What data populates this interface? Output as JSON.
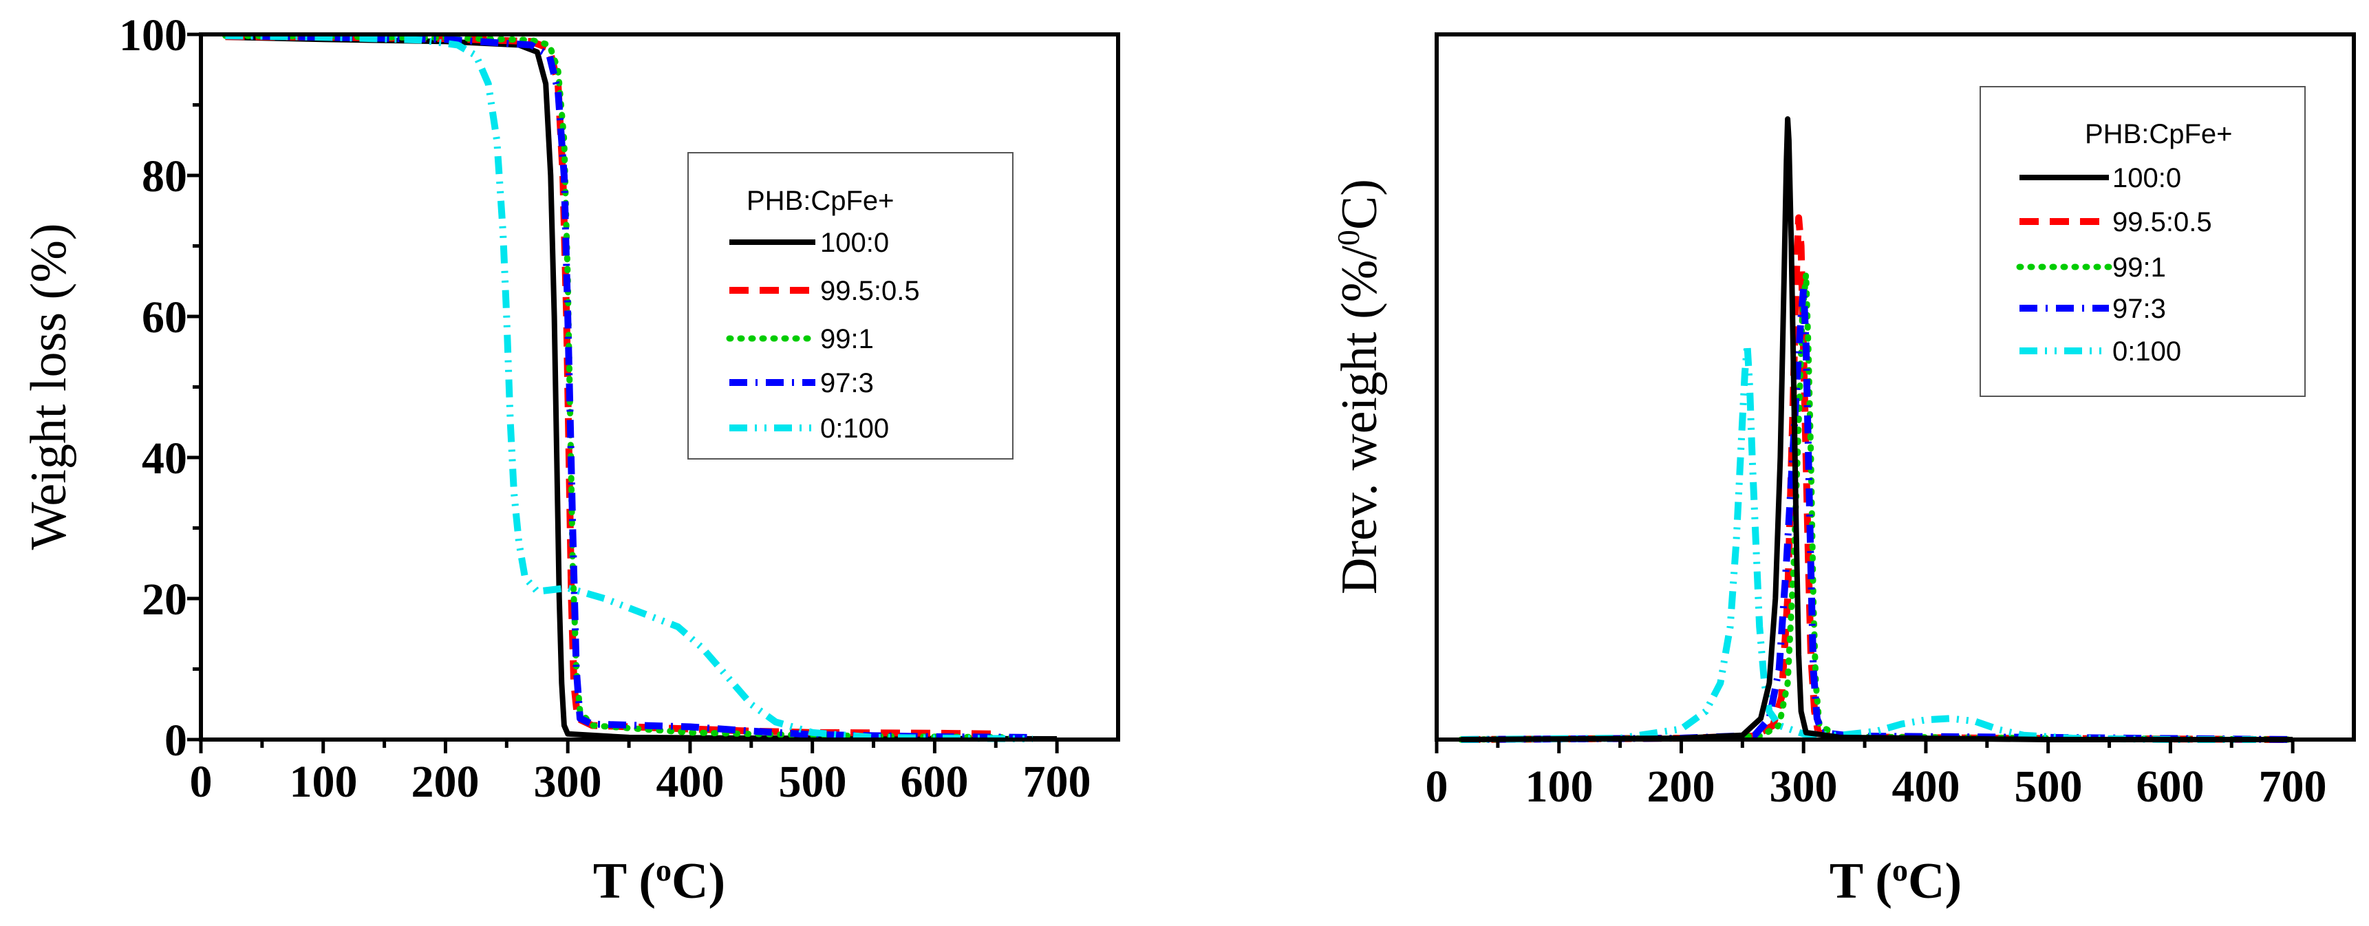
{
  "chart_data": [
    {
      "type": "line",
      "title": "",
      "xlabel": "T (",
      "xlabel_sup": "o",
      "xlabel_end": "C)",
      "ylabel": "Weight loss (%)",
      "xlim": [
        0,
        750
      ],
      "ylim": [
        0,
        100
      ],
      "x_ticks": [
        "0",
        "100",
        "200",
        "300",
        "400",
        "500",
        "600",
        "700"
      ],
      "y_ticks": [
        "0",
        "20",
        "40",
        "60",
        "80",
        "100"
      ],
      "legend_title": "PHB:CpFe+",
      "legend_position": "center-right",
      "series": [
        {
          "name": "100:0",
          "color": "#000000",
          "style": "solid",
          "points": [
            [
              20,
              99.6
            ],
            [
              100,
              99.3
            ],
            [
              200,
              99.0
            ],
            [
              260,
              98.5
            ],
            [
              275,
              97.5
            ],
            [
              282,
              93
            ],
            [
              286,
              80
            ],
            [
              289,
              60
            ],
            [
              291,
              40
            ],
            [
              293,
              20
            ],
            [
              295,
              8
            ],
            [
              297,
              2
            ],
            [
              300,
              0.8
            ],
            [
              350,
              0.3
            ],
            [
              450,
              0.2
            ],
            [
              700,
              0.1
            ]
          ]
        },
        {
          "name": "99.5:0.5",
          "color": "#ff0000",
          "style": "dash",
          "points": [
            [
              20,
              99.7
            ],
            [
              100,
              99.6
            ],
            [
              200,
              99.4
            ],
            [
              270,
              99.0
            ],
            [
              285,
              98
            ],
            [
              292,
              93
            ],
            [
              296,
              80
            ],
            [
              299,
              60
            ],
            [
              301,
              40
            ],
            [
              303,
              20
            ],
            [
              305,
              8
            ],
            [
              308,
              3
            ],
            [
              320,
              2
            ],
            [
              400,
              1.5
            ],
            [
              450,
              1.2
            ],
            [
              500,
              1.0
            ],
            [
              600,
              0.9
            ],
            [
              650,
              0.8
            ]
          ]
        },
        {
          "name": "99:1",
          "color": "#00cc00",
          "style": "dot",
          "points": [
            [
              20,
              99.8
            ],
            [
              100,
              99.7
            ],
            [
              200,
              99.5
            ],
            [
              270,
              99.2
            ],
            [
              285,
              98.5
            ],
            [
              292,
              95
            ],
            [
              297,
              85
            ],
            [
              300,
              65
            ],
            [
              302,
              45
            ],
            [
              304,
              25
            ],
            [
              307,
              10
            ],
            [
              310,
              4
            ],
            [
              320,
              2
            ],
            [
              400,
              1.0
            ],
            [
              500,
              0.6
            ],
            [
              600,
              0.4
            ],
            [
              680,
              0.3
            ]
          ]
        },
        {
          "name": "97:3",
          "color": "#0000ff",
          "style": "dashdot",
          "points": [
            [
              20,
              99.8
            ],
            [
              100,
              99.6
            ],
            [
              200,
              99.3
            ],
            [
              270,
              98.5
            ],
            [
              285,
              97
            ],
            [
              292,
              92
            ],
            [
              297,
              80
            ],
            [
              300,
              60
            ],
            [
              302,
              45
            ],
            [
              304,
              30
            ],
            [
              307,
              10
            ],
            [
              310,
              3
            ],
            [
              320,
              2.2
            ],
            [
              400,
              1.8
            ],
            [
              450,
              1.2
            ],
            [
              500,
              0.7
            ],
            [
              600,
              0.4
            ],
            [
              680,
              0.3
            ]
          ]
        },
        {
          "name": "0:100",
          "color": "#00e5ee",
          "style": "dashdotdot",
          "points": [
            [
              20,
              99.8
            ],
            [
              100,
              99.6
            ],
            [
              180,
              99.2
            ],
            [
              210,
              98.5
            ],
            [
              225,
              97
            ],
            [
              235,
              93
            ],
            [
              242,
              85
            ],
            [
              247,
              72
            ],
            [
              250,
              60
            ],
            [
              253,
              45
            ],
            [
              256,
              35
            ],
            [
              260,
              28
            ],
            [
              265,
              23
            ],
            [
              275,
              21
            ],
            [
              300,
              21.5
            ],
            [
              330,
              20
            ],
            [
              360,
              18
            ],
            [
              390,
              16
            ],
            [
              410,
              13
            ],
            [
              430,
              9
            ],
            [
              450,
              5
            ],
            [
              470,
              2.5
            ],
            [
              500,
              1
            ],
            [
              550,
              0.3
            ],
            [
              680,
              0.1
            ]
          ]
        }
      ]
    },
    {
      "type": "line",
      "title": "",
      "xlabel": "T (",
      "xlabel_sup": "o",
      "xlabel_end": "C)",
      "ylabel": "Drev. weight (%/",
      "ylabel_sup": "0",
      "ylabel_end": "C)",
      "xlim": [
        0,
        750
      ],
      "ylim": [
        0,
        100
      ],
      "x_ticks": [
        "0",
        "100",
        "200",
        "300",
        "400",
        "500",
        "600",
        "700"
      ],
      "y_ticks": [],
      "legend_title": "PHB:CpFe+",
      "legend_position": "top-right",
      "series": [
        {
          "name": "100:0",
          "color": "#000000",
          "style": "solid",
          "points": [
            [
              20,
              0
            ],
            [
              200,
              0.2
            ],
            [
              250,
              0.6
            ],
            [
              265,
              3
            ],
            [
              272,
              8
            ],
            [
              277,
              20
            ],
            [
              281,
              40
            ],
            [
              284,
              65
            ],
            [
              286,
              82
            ],
            [
              287,
              88
            ],
            [
              288,
              85
            ],
            [
              290,
              70
            ],
            [
              292,
              50
            ],
            [
              294,
              30
            ],
            [
              296,
              12
            ],
            [
              298,
              4
            ],
            [
              302,
              1
            ],
            [
              330,
              0.3
            ],
            [
              500,
              0
            ],
            [
              700,
              0
            ]
          ]
        },
        {
          "name": "99.5:0.5",
          "color": "#ff0000",
          "style": "dash",
          "points": [
            [
              20,
              0
            ],
            [
              200,
              0.2
            ],
            [
              260,
              0.5
            ],
            [
              275,
              2
            ],
            [
              282,
              6
            ],
            [
              287,
              20
            ],
            [
              291,
              45
            ],
            [
              294,
              65
            ],
            [
              296,
              74
            ],
            [
              298,
              70
            ],
            [
              300,
              55
            ],
            [
              302,
              40
            ],
            [
              304,
              25
            ],
            [
              306,
              12
            ],
            [
              309,
              4
            ],
            [
              312,
              1
            ],
            [
              330,
              0.4
            ],
            [
              450,
              0.2
            ],
            [
              700,
              0
            ]
          ]
        },
        {
          "name": "99:1",
          "color": "#00cc00",
          "style": "dot",
          "points": [
            [
              20,
              0
            ],
            [
              200,
              0.2
            ],
            [
              265,
              0.5
            ],
            [
              280,
              2
            ],
            [
              287,
              8
            ],
            [
              292,
              25
            ],
            [
              296,
              45
            ],
            [
              299,
              60
            ],
            [
              302,
              66
            ],
            [
              304,
              55
            ],
            [
              306,
              40
            ],
            [
              308,
              20
            ],
            [
              310,
              8
            ],
            [
              313,
              2
            ],
            [
              330,
              0.4
            ],
            [
              700,
              0
            ]
          ]
        },
        {
          "name": "97:3",
          "color": "#0000ff",
          "style": "dashdot",
          "points": [
            [
              20,
              0
            ],
            [
              200,
              0.2
            ],
            [
              260,
              0.6
            ],
            [
              272,
              3
            ],
            [
              280,
              10
            ],
            [
              286,
              25
            ],
            [
              291,
              40
            ],
            [
              295,
              52
            ],
            [
              298,
              60
            ],
            [
              300,
              64
            ],
            [
              302,
              56
            ],
            [
              304,
              40
            ],
            [
              306,
              24
            ],
            [
              308,
              10
            ],
            [
              311,
              3
            ],
            [
              315,
              1
            ],
            [
              340,
              0.5
            ],
            [
              500,
              0.3
            ],
            [
              700,
              0
            ]
          ]
        },
        {
          "name": "0:100",
          "color": "#00e5ee",
          "style": "dashdotdot",
          "points": [
            [
              20,
              0
            ],
            [
              150,
              0.2
            ],
            [
              200,
              1.5
            ],
            [
              220,
              4
            ],
            [
              232,
              8
            ],
            [
              240,
              16
            ],
            [
              245,
              28
            ],
            [
              249,
              42
            ],
            [
              252,
              52
            ],
            [
              254,
              56
            ],
            [
              256,
              50
            ],
            [
              258,
              40
            ],
            [
              261,
              28
            ],
            [
              264,
              16
            ],
            [
              268,
              8
            ],
            [
              272,
              4
            ],
            [
              280,
              2
            ],
            [
              300,
              0.8
            ],
            [
              330,
              0.6
            ],
            [
              360,
              1.2
            ],
            [
              380,
              2.2
            ],
            [
              400,
              2.8
            ],
            [
              420,
              3.0
            ],
            [
              440,
              2.6
            ],
            [
              460,
              1.4
            ],
            [
              480,
              0.6
            ],
            [
              520,
              0.2
            ],
            [
              600,
              0
            ],
            [
              670,
              0
            ]
          ]
        }
      ]
    }
  ]
}
